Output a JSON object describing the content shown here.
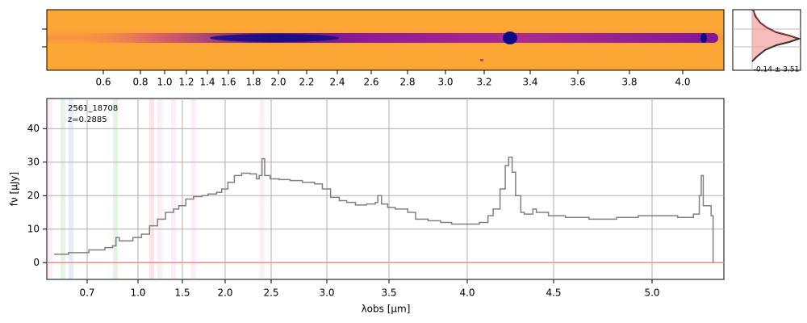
{
  "chart_data": {
    "type": "line",
    "annotations": [
      "2561_18708",
      "z=0.2885"
    ],
    "xlabel": "λobs [μm]",
    "ylabel": "fν [μJy]",
    "color": "#808080",
    "zero_color": "#f08080",
    "xlim": [
      0.46,
      5.36
    ],
    "ylim": [
      -5,
      49
    ],
    "xticks": [
      0.7,
      {
        "value": 1,
        "label": "1.0"
      },
      1.5,
      {
        "value": 2,
        "label": "2.0"
      },
      2.5,
      {
        "value": 3,
        "label": "3.0"
      },
      3.5,
      {
        "value": 4,
        "label": "4.0"
      },
      4.5,
      {
        "value": 5,
        "label": "5.0"
      }
    ],
    "yticks": [
      0,
      10,
      20,
      30,
      40
    ],
    "grid": true,
    "x": [
      0.505,
      0.59,
      0.71,
      0.805,
      0.85,
      0.87,
      0.89,
      0.92,
      0.97,
      1.04,
      1.13,
      1.22,
      1.31,
      1.4,
      1.46,
      1.54,
      1.63,
      1.73,
      1.8,
      1.9,
      1.96,
      2.03,
      2.1,
      2.18,
      2.27,
      2.34,
      2.37,
      2.4,
      2.43,
      2.49,
      2.57,
      2.67,
      2.78,
      2.89,
      2.96,
      3.03,
      3.1,
      3.16,
      3.23,
      3.32,
      3.39,
      3.41,
      3.44,
      3.49,
      3.54,
      3.62,
      3.67,
      3.75,
      3.83,
      3.9,
      4.0,
      4.07,
      4.12,
      4.15,
      4.19,
      4.22,
      4.24,
      4.26,
      4.28,
      4.31,
      4.33,
      4.38,
      4.4,
      4.47,
      4.56,
      4.68,
      4.82,
      4.93,
      5.01,
      5.13,
      5.21,
      5.24,
      5.25,
      5.26,
      5.3,
      5.31
    ],
    "values": [
      2.5,
      3,
      3.8,
      4.5,
      5,
      7.5,
      6.5,
      6.5,
      7.5,
      8.5,
      11,
      13,
      15,
      16,
      17,
      19,
      19.7,
      20,
      20.5,
      21,
      22,
      24,
      26,
      26.7,
      26.5,
      25,
      26,
      31,
      26,
      25,
      24.8,
      24.5,
      24,
      23.5,
      22,
      19.5,
      18.5,
      18,
      17.2,
      17.5,
      18,
      20,
      17.5,
      16.5,
      16,
      15,
      13,
      12.5,
      12,
      11.5,
      11.5,
      12,
      14,
      16,
      22,
      29,
      31.5,
      27,
      20,
      15,
      14.5,
      16,
      15,
      14,
      13.5,
      13,
      13.5,
      14,
      14,
      13.5,
      14.5,
      20,
      26,
      17,
      14,
      0
    ],
    "line_markers": [
      {
        "x": 0.48,
        "color": "#e377c2"
      },
      {
        "x": 0.557,
        "color": "#2ca02c"
      },
      {
        "x": 0.605,
        "color": "#1f77b4"
      },
      {
        "x": 0.867,
        "color": "#2ca02c"
      },
      {
        "x": 1.155,
        "color": "#d62728"
      },
      {
        "x": 1.245,
        "color": "#e377c2"
      },
      {
        "x": 1.4,
        "color": "#e377c2"
      },
      {
        "x": 1.63,
        "color": "#e377c2"
      },
      {
        "x": 2.4,
        "color": "#e377c2"
      }
    ],
    "image_panel": {
      "xticks": [
        0.6,
        0.8,
        {
          "value": 1,
          "label": "1.0"
        },
        1.2,
        1.4,
        1.6,
        1.8,
        {
          "value": 2,
          "label": "2.0"
        },
        2.2,
        2.4,
        2.6,
        2.8,
        {
          "value": 3,
          "label": "3.0"
        },
        3.2,
        3.4,
        3.6,
        3.8,
        {
          "value": 4,
          "label": "4.0"
        }
      ],
      "histogram_label": "-0.14 ± 3.51"
    }
  }
}
